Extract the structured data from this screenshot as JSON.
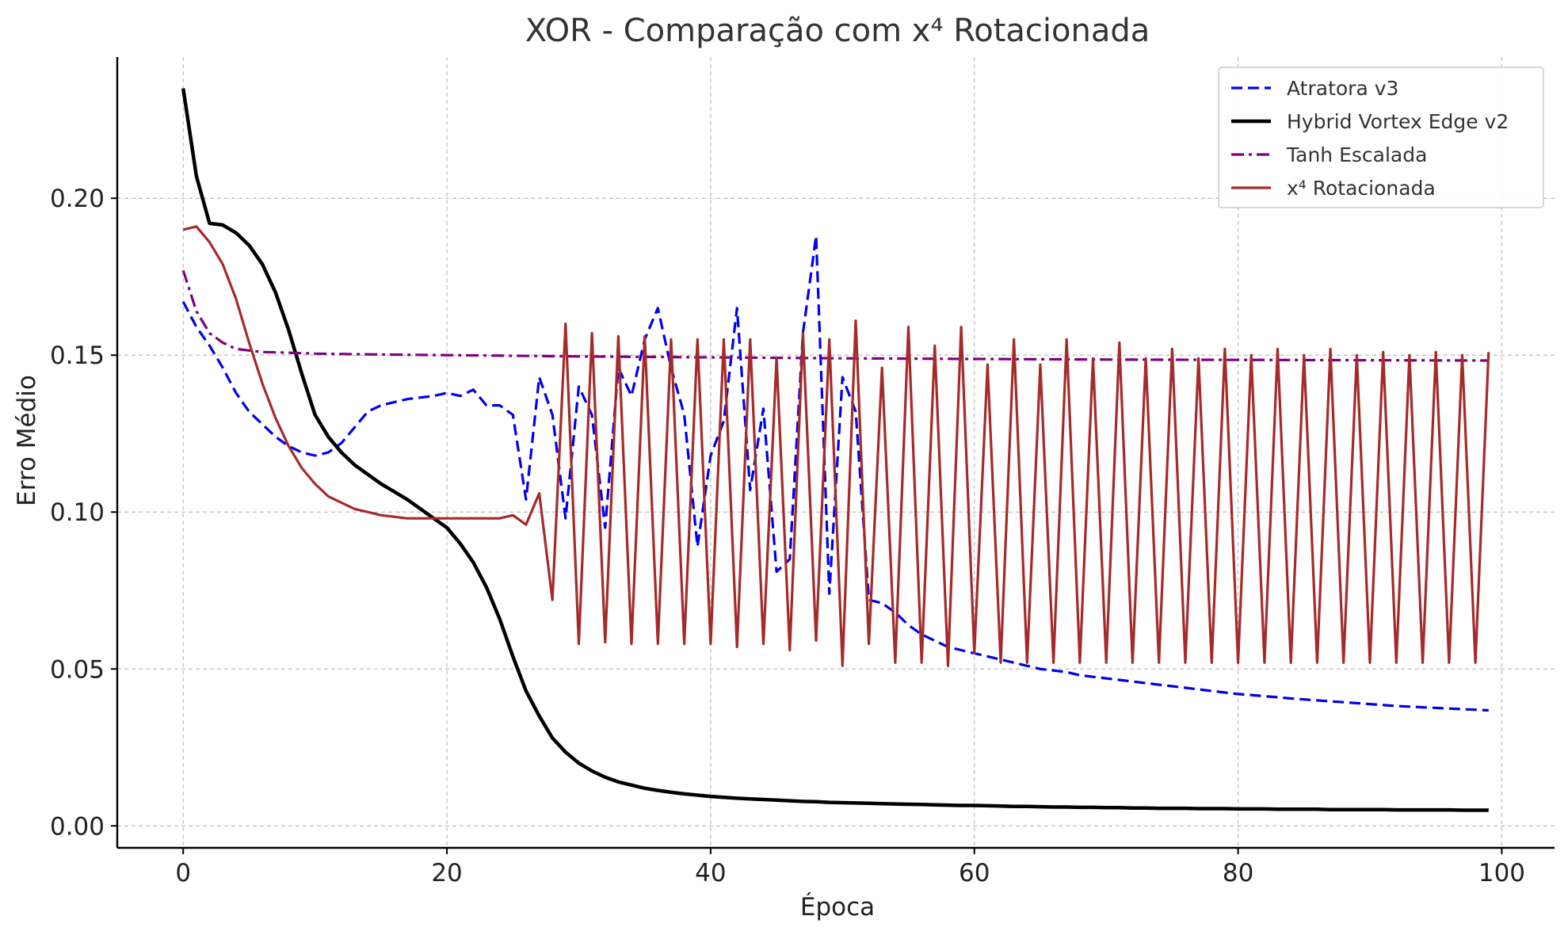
{
  "chart_data": {
    "type": "line",
    "title": "XOR - Comparação com x⁴ Rotacionada",
    "xlabel": "Época",
    "ylabel": "Erro Médio",
    "xlim": [
      -5,
      104
    ],
    "ylim": [
      -0.007,
      0.245
    ],
    "xticks": [
      0,
      20,
      40,
      60,
      80,
      100
    ],
    "yticks": [
      0.0,
      0.05,
      0.1,
      0.15,
      0.2
    ],
    "xtick_labels": [
      "0",
      "20",
      "40",
      "60",
      "80",
      "100"
    ],
    "ytick_labels": [
      "0.00",
      "0.05",
      "0.10",
      "0.15",
      "0.20"
    ],
    "grid": true,
    "legend_position": "top-right",
    "series": [
      {
        "name": "Atratora v3",
        "color": "#0000ee",
        "style": "dashed",
        "x": [
          0,
          1,
          2,
          3,
          4,
          5,
          6,
          7,
          8,
          9,
          10,
          11,
          12,
          13,
          14,
          15,
          16,
          17,
          18,
          19,
          20,
          21,
          22,
          23,
          24,
          25,
          26,
          27,
          28,
          29,
          30,
          31,
          32,
          33,
          34,
          35,
          36,
          37,
          38,
          39,
          40,
          41,
          42,
          43,
          44,
          45,
          46,
          47,
          48,
          49,
          50,
          51,
          52,
          53,
          54,
          55,
          56,
          57,
          58,
          59,
          60,
          61,
          62,
          63,
          64,
          65,
          66,
          67,
          68,
          69,
          70,
          71,
          72,
          73,
          74,
          75,
          76,
          77,
          78,
          79,
          80,
          81,
          82,
          83,
          84,
          85,
          86,
          87,
          88,
          89,
          90,
          91,
          92,
          93,
          94,
          95,
          96,
          97,
          98,
          99
        ],
        "y": [
          0.167,
          0.159,
          0.153,
          0.146,
          0.138,
          0.132,
          0.128,
          0.124,
          0.121,
          0.119,
          0.118,
          0.119,
          0.122,
          0.127,
          0.132,
          0.134,
          0.135,
          0.136,
          0.1365,
          0.137,
          0.138,
          0.137,
          0.139,
          0.134,
          0.134,
          0.131,
          0.104,
          0.143,
          0.131,
          0.098,
          0.14,
          0.131,
          0.095,
          0.146,
          0.137,
          0.155,
          0.165,
          0.146,
          0.131,
          0.089,
          0.118,
          0.129,
          0.165,
          0.107,
          0.133,
          0.081,
          0.085,
          0.157,
          0.188,
          0.074,
          0.143,
          0.132,
          0.072,
          0.071,
          0.068,
          0.064,
          0.061,
          0.059,
          0.057,
          0.056,
          0.055,
          0.054,
          0.053,
          0.052,
          0.051,
          0.05,
          0.0495,
          0.049,
          0.048,
          0.0475,
          0.047,
          0.0465,
          0.046,
          0.0455,
          0.045,
          0.0445,
          0.044,
          0.0435,
          0.043,
          0.0425,
          0.042,
          0.0417,
          0.0413,
          0.041,
          0.0406,
          0.0403,
          0.04,
          0.0397,
          0.0394,
          0.0391,
          0.0388,
          0.0385,
          0.0382,
          0.038,
          0.0378,
          0.0376,
          0.0374,
          0.0372,
          0.037,
          0.0368
        ]
      },
      {
        "name": "Hybrid Vortex Edge v2",
        "color": "#000000",
        "style": "solid",
        "x": [
          0,
          1,
          2,
          3,
          4,
          5,
          6,
          7,
          8,
          9,
          10,
          11,
          12,
          13,
          14,
          15,
          16,
          17,
          18,
          19,
          20,
          21,
          22,
          23,
          24,
          25,
          26,
          27,
          28,
          29,
          30,
          31,
          32,
          33,
          34,
          35,
          36,
          37,
          38,
          39,
          40,
          41,
          42,
          43,
          44,
          45,
          46,
          47,
          48,
          49,
          50,
          51,
          52,
          53,
          54,
          55,
          56,
          57,
          58,
          59,
          60,
          61,
          62,
          63,
          64,
          65,
          66,
          67,
          68,
          69,
          70,
          71,
          72,
          73,
          74,
          75,
          76,
          77,
          78,
          79,
          80,
          81,
          82,
          83,
          84,
          85,
          86,
          87,
          88,
          89,
          90,
          91,
          92,
          93,
          94,
          95,
          96,
          97,
          98,
          99
        ],
        "y": [
          0.235,
          0.207,
          0.192,
          0.1915,
          0.189,
          0.185,
          0.179,
          0.17,
          0.158,
          0.144,
          0.131,
          0.124,
          0.119,
          0.115,
          0.112,
          0.109,
          0.1065,
          0.104,
          0.101,
          0.098,
          0.095,
          0.09,
          0.084,
          0.076,
          0.066,
          0.054,
          0.043,
          0.035,
          0.028,
          0.0235,
          0.02,
          0.0175,
          0.0155,
          0.014,
          0.013,
          0.012,
          0.0113,
          0.0107,
          0.0102,
          0.0098,
          0.0094,
          0.0091,
          0.0088,
          0.0086,
          0.0084,
          0.0082,
          0.008,
          0.0078,
          0.0077,
          0.0075,
          0.0074,
          0.0073,
          0.0072,
          0.0071,
          0.007,
          0.0069,
          0.0068,
          0.0067,
          0.0066,
          0.0065,
          0.0065,
          0.0064,
          0.0063,
          0.0062,
          0.0062,
          0.0061,
          0.006,
          0.006,
          0.0059,
          0.0059,
          0.0058,
          0.0058,
          0.0057,
          0.0057,
          0.0056,
          0.0056,
          0.0056,
          0.0055,
          0.0055,
          0.0055,
          0.0054,
          0.0054,
          0.0054,
          0.0053,
          0.0053,
          0.0053,
          0.0053,
          0.0052,
          0.0052,
          0.0052,
          0.0052,
          0.0052,
          0.0051,
          0.0051,
          0.0051,
          0.0051,
          0.0051,
          0.005,
          0.005,
          0.005
        ]
      },
      {
        "name": "Tanh Escalada",
        "color": "#800080",
        "style": "dashdot",
        "x": [
          0,
          1,
          2,
          3,
          4,
          5,
          6,
          8,
          10,
          15,
          20,
          30,
          40,
          50,
          60,
          70,
          80,
          90,
          99
        ],
        "y": [
          0.177,
          0.164,
          0.157,
          0.154,
          0.152,
          0.1515,
          0.151,
          0.1508,
          0.1505,
          0.1502,
          0.15,
          0.1496,
          0.1493,
          0.149,
          0.1488,
          0.1486,
          0.1485,
          0.1484,
          0.1483
        ]
      },
      {
        "name": "x⁴ Rotacionada",
        "color": "#a52a2a",
        "style": "solid",
        "x": [
          0,
          1,
          2,
          3,
          4,
          5,
          6,
          7,
          8,
          9,
          10,
          11,
          12,
          13,
          14,
          15,
          16,
          17,
          18,
          19,
          20,
          21,
          22,
          23,
          24,
          25,
          26,
          27,
          28,
          29,
          30,
          31,
          32,
          33,
          34,
          35,
          36,
          37,
          38,
          39,
          40,
          41,
          42,
          43,
          44,
          45,
          46,
          47,
          48,
          49,
          50,
          51,
          52,
          53,
          54,
          55,
          56,
          57,
          58,
          59,
          60,
          61,
          62,
          63,
          64,
          65,
          66,
          67,
          68,
          69,
          70,
          71,
          72,
          73,
          74,
          75,
          76,
          77,
          78,
          79,
          80,
          81,
          82,
          83,
          84,
          85,
          86,
          87,
          88,
          89,
          90,
          91,
          92,
          93,
          94,
          95,
          96,
          97,
          98,
          99
        ],
        "y": [
          0.19,
          0.191,
          0.186,
          0.179,
          0.168,
          0.154,
          0.141,
          0.13,
          0.121,
          0.114,
          0.109,
          0.105,
          0.103,
          0.101,
          0.1,
          0.099,
          0.0985,
          0.098,
          0.098,
          0.098,
          0.098,
          0.098,
          0.098,
          0.098,
          0.098,
          0.099,
          0.096,
          0.106,
          0.072,
          0.16,
          0.058,
          0.157,
          0.0585,
          0.156,
          0.058,
          0.156,
          0.058,
          0.155,
          0.058,
          0.155,
          0.058,
          0.155,
          0.057,
          0.155,
          0.058,
          0.149,
          0.056,
          0.157,
          0.059,
          0.155,
          0.051,
          0.161,
          0.058,
          0.146,
          0.052,
          0.159,
          0.052,
          0.153,
          0.051,
          0.159,
          0.055,
          0.147,
          0.052,
          0.155,
          0.052,
          0.147,
          0.052,
          0.155,
          0.052,
          0.149,
          0.052,
          0.154,
          0.052,
          0.149,
          0.052,
          0.152,
          0.052,
          0.149,
          0.052,
          0.152,
          0.052,
          0.15,
          0.052,
          0.152,
          0.052,
          0.15,
          0.052,
          0.152,
          0.052,
          0.15,
          0.052,
          0.151,
          0.052,
          0.15,
          0.052,
          0.151,
          0.052,
          0.15,
          0.052,
          0.151
        ]
      }
    ]
  }
}
